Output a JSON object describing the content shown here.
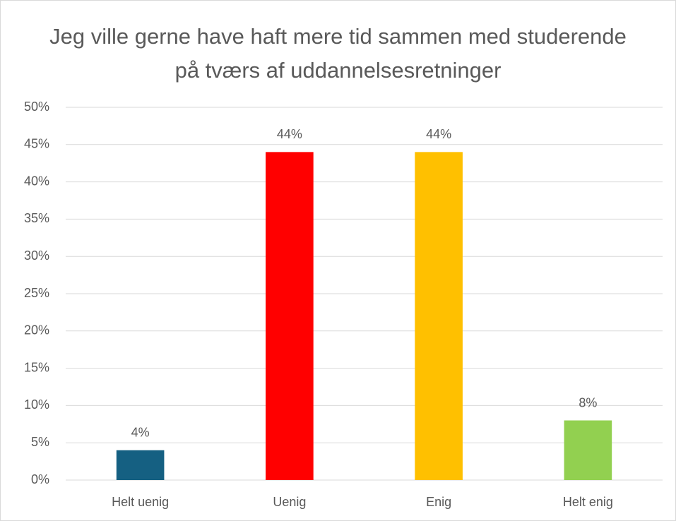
{
  "chart_data": {
    "type": "bar",
    "title": "Jeg ville gerne have haft mere tid sammen med studerende på tværs af uddannelsesretninger",
    "categories": [
      "Helt uenig",
      "Uenig",
      "Enig",
      "Helt enig"
    ],
    "values": [
      4,
      44,
      44,
      8
    ],
    "value_labels": [
      "4%",
      "44%",
      "44%",
      "8%"
    ],
    "colors": [
      "#156082",
      "#ff0000",
      "#ffc000",
      "#92d050"
    ],
    "ylim": [
      0,
      50
    ],
    "yticks": [
      {
        "value": 0,
        "label": "0%"
      },
      {
        "value": 5,
        "label": "5%"
      },
      {
        "value": 10,
        "label": "10%"
      },
      {
        "value": 15,
        "label": "15%"
      },
      {
        "value": 20,
        "label": "20%"
      },
      {
        "value": 25,
        "label": "25%"
      },
      {
        "value": 30,
        "label": "30%"
      },
      {
        "value": 35,
        "label": "35%"
      },
      {
        "value": 40,
        "label": "40%"
      },
      {
        "value": 45,
        "label": "45%"
      },
      {
        "value": 50,
        "label": "50%"
      }
    ],
    "grid": true
  }
}
